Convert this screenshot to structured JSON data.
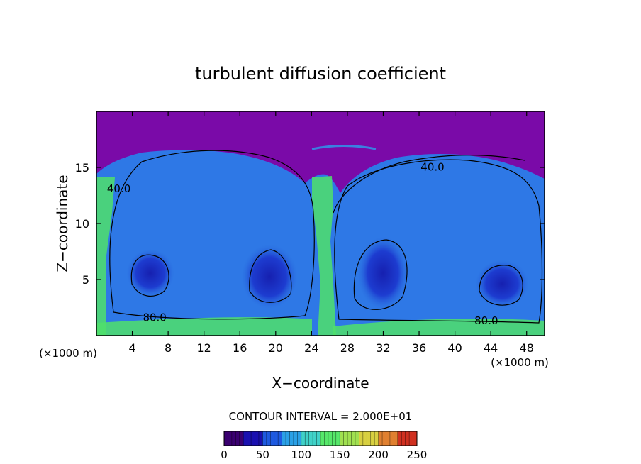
{
  "chart_data": {
    "type": "heatmap",
    "title": "turbulent diffusion coefficient",
    "xlabel": "X−coordinate",
    "ylabel": "Z−coordinate",
    "x_unit_left": "(×1000 m)",
    "x_unit_right": "(×1000 m)",
    "xlim": [
      0,
      50
    ],
    "ylim": [
      0,
      20
    ],
    "x_ticks": [
      4,
      8,
      12,
      16,
      20,
      24,
      28,
      32,
      36,
      40,
      44,
      48
    ],
    "y_ticks": [
      5,
      10,
      15
    ],
    "contour_interval_text": "CONTOUR INTERVAL = 2.000E+01",
    "colorbar": {
      "range": [
        0,
        250
      ],
      "ticks": [
        0,
        50,
        100,
        150,
        200,
        250
      ],
      "colors": [
        "#3a0070",
        "#1a10b0",
        "#1e5ae0",
        "#2aa0e6",
        "#3fd2c8",
        "#56e86a",
        "#a0e050",
        "#d8d040",
        "#e08030",
        "#d03020"
      ]
    },
    "colors": {
      "background_top": "#7a0aa8",
      "cell_blue": "#2e78e6",
      "core_dark": "#1c2ac0",
      "edge_green": "#4fe06a"
    },
    "contour_labels": [
      {
        "text": "80.0",
        "x": 6.5,
        "z": 1.3
      },
      {
        "text": "80.0",
        "x": 43.5,
        "z": 1.0
      },
      {
        "text": "40.0",
        "x": 37.5,
        "z": 14.7
      },
      {
        "text": "40.0",
        "x": 2.5,
        "z": 12.8
      }
    ]
  }
}
